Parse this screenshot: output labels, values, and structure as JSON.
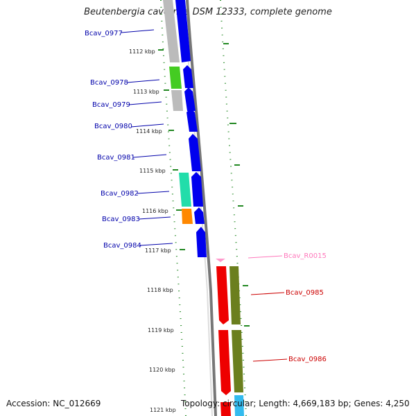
{
  "title": "Beutenbergia cavernae DSM 12333, complete genome",
  "footer": {
    "accession": "Accession: NC_012669",
    "topology": "Topology: circular; Length: 4,669,183 bp; Genes: 4,250"
  },
  "scale_ticks": [
    "1112 kbp",
    "1113 kbp",
    "1114 kbp",
    "1115 kbp",
    "1116 kbp",
    "1117 kbp",
    "1118 kbp",
    "1119 kbp",
    "1120 kbp",
    "1121 kbp"
  ],
  "genes": [
    {
      "label": "Bcav_0977",
      "color": "#0000aa"
    },
    {
      "label": "Bcav_0978",
      "color": "#0000aa"
    },
    {
      "label": "Bcav_0979",
      "color": "#0000aa"
    },
    {
      "label": "Bcav_0980",
      "color": "#0000aa"
    },
    {
      "label": "Bcav_0981",
      "color": "#0000aa"
    },
    {
      "label": "Bcav_0982",
      "color": "#0000aa"
    },
    {
      "label": "Bcav_0983",
      "color": "#0000aa"
    },
    {
      "label": "Bcav_0984",
      "color": "#0000aa"
    },
    {
      "label": "Bcav_R0015",
      "color": "#ff77bb"
    },
    {
      "label": "Bcav_0985",
      "color": "#cc0000"
    },
    {
      "label": "Bcav_0986",
      "color": "#cc0000"
    }
  ],
  "colors": {
    "forward_cds": "#0000ee",
    "reverse_cds": "#ee0000",
    "rna": "#ff99cc",
    "backbone": "#888888",
    "gc_skew": "#228822",
    "cog_colors": [
      "#bbbbbb",
      "#44cc22",
      "#22ddaa",
      "#ff8800",
      "#6b7f1e",
      "#33bbee"
    ]
  }
}
